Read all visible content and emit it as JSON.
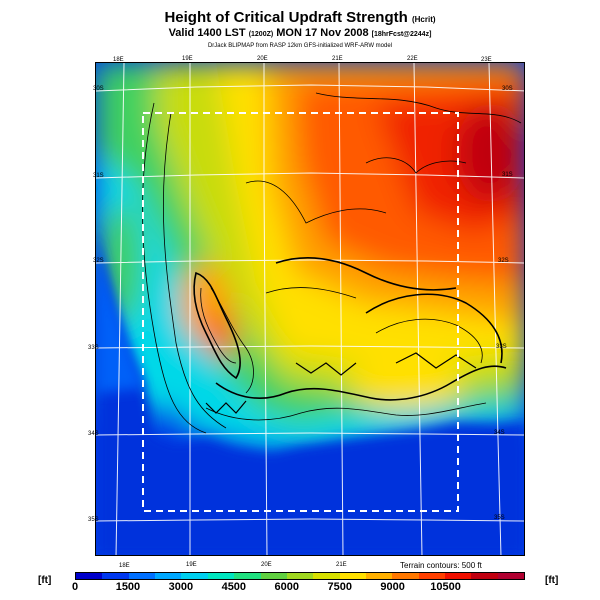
{
  "header": {
    "title": "Height of Critical Updraft Strength",
    "title_units": "(Hcrit)",
    "subtitle": "Valid 1400 LST",
    "subtitle_code": "(1200Z)",
    "subtitle_date": "MON 17 Nov 2008",
    "subtitle_forecast": "[18hrFcst@2244z]",
    "credit": "DrJack BLIPMAP from RASP 12km GFS-initialized WRF-ARW model"
  },
  "map": {
    "top_lon_labels": [
      "18E",
      "19E",
      "20E",
      "21E",
      "22E",
      "23E"
    ],
    "bottom_lon_labels": [
      "18E",
      "19E",
      "20E",
      "21E"
    ],
    "left_lat_labels": [
      "30S",
      "31S",
      "32S",
      "33S",
      "34S",
      "35S"
    ],
    "right_lat_labels": [
      "30S",
      "31S",
      "32S",
      "33S",
      "34S",
      "35S"
    ],
    "terrain_note": "Terrain contours: 500 ft"
  },
  "legend": {
    "unit_left": "[ft]",
    "unit_right": "[ft]",
    "ticks": [
      "0",
      "1500",
      "3000",
      "4500",
      "6000",
      "7500",
      "9000",
      "10500"
    ],
    "colors": [
      "#0000cc",
      "#0038f0",
      "#0070ff",
      "#00a8ff",
      "#00d0f0",
      "#00e6c0",
      "#20e080",
      "#60d040",
      "#a0d820",
      "#d8e000",
      "#ffe000",
      "#ffb000",
      "#ff7800",
      "#ff4000",
      "#f01000",
      "#c00010",
      "#b00030"
    ]
  }
}
